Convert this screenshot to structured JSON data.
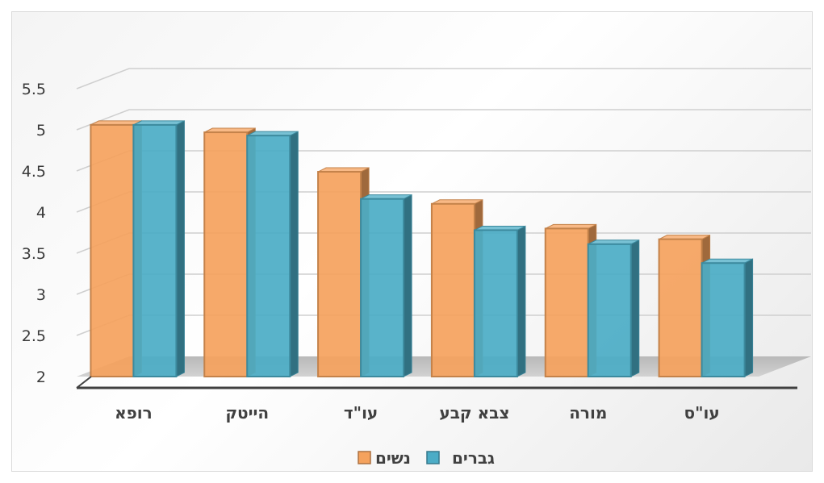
{
  "chart_data": {
    "type": "bar",
    "categories": [
      "רופא",
      "הייטק",
      "עו\"ד",
      "צבא קבע",
      "מורה",
      "עו\"ס"
    ],
    "series": [
      {
        "name": "נשים",
        "values": [
          5.06,
          4.97,
          4.49,
          4.1,
          3.8,
          3.67
        ],
        "color": "#F5A25D"
      },
      {
        "name": "גברים",
        "values": [
          5.06,
          4.93,
          4.16,
          3.78,
          3.61,
          3.38
        ],
        "color": "#4BACC6"
      }
    ],
    "ylim": [
      2,
      5.5
    ],
    "yticks": [
      "2",
      "2.5",
      "3",
      "3.5",
      "4",
      "4.5",
      "5",
      "5.5"
    ],
    "ytick_values": [
      2,
      2.5,
      3,
      3.5,
      4,
      4.5,
      5,
      5.5
    ],
    "grid": true,
    "legend": "bottom",
    "style": "3d-clustered"
  }
}
